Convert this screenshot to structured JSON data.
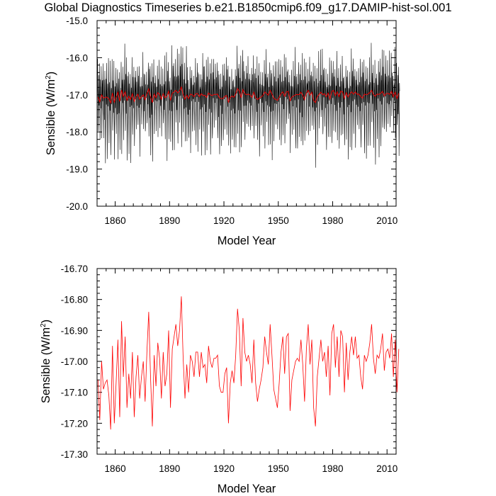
{
  "title": "Global Diagnostics Timeseries b.e21.B1850cmip6.f09_g17.DAMIP-hist-sol.001",
  "colors": {
    "monthly": "#000000",
    "annual": "#ff0000",
    "frame": "#000000"
  },
  "chart_data": [
    {
      "type": "line",
      "xlabel": "Model Year",
      "ylabel_main": "Sensible (W/m",
      "ylabel_sup": "2",
      "ylabel_close": ")",
      "xlim": [
        1850,
        2015
      ],
      "ylim": [
        -20.0,
        -15.0
      ],
      "xticks": [
        1860,
        1890,
        1920,
        1950,
        1980,
        2010
      ],
      "xtick_labels": [
        "1860",
        "1890",
        "1920",
        "1950",
        "1980",
        "2010"
      ],
      "yticks": [
        -15.0,
        -16.0,
        -17.0,
        -18.0,
        -19.0,
        -20.0
      ],
      "ytick_labels": [
        "-15.0",
        "-16.0",
        "-17.0",
        "-18.0",
        "-19.0",
        "-20.0"
      ],
      "grid": false,
      "series": [
        {
          "color": "#000000",
          "resolution": "monthly",
          "approx_range": [
            -19.0,
            -15.6
          ],
          "approx_mean": -17.0,
          "seasonal_high_range": [
            -16.9,
            -15.6
          ],
          "seasonal_low_range": [
            -19.0,
            -17.6
          ]
        },
        {
          "color": "#ff0000",
          "resolution": "annual",
          "values_ref": "annual_means"
        }
      ]
    },
    {
      "type": "line",
      "xlabel": "Model Year",
      "ylabel_main": "Sensible (W/m",
      "ylabel_sup": "2",
      "ylabel_close": ")",
      "xlim": [
        1850,
        2015
      ],
      "ylim": [
        -17.3,
        -16.7
      ],
      "xticks": [
        1860,
        1890,
        1920,
        1950,
        1980,
        2010
      ],
      "xtick_labels": [
        "1860",
        "1890",
        "1920",
        "1950",
        "1980",
        "2010"
      ],
      "yticks": [
        -16.7,
        -16.8,
        -16.9,
        -17.0,
        -17.1,
        -17.2,
        -17.3
      ],
      "ytick_labels": [
        "-16.70",
        "-16.80",
        "-16.90",
        "-17.00",
        "-17.10",
        "-17.20",
        "-17.30"
      ],
      "grid": false,
      "series": [
        {
          "color": "#ff0000",
          "resolution": "annual",
          "start_year": 1850,
          "values": [
            -17.06,
            -17.19,
            -17.0,
            -17.09,
            -17.07,
            -17.06,
            -17.11,
            -17.22,
            -16.95,
            -17.2,
            -17.07,
            -16.93,
            -17.18,
            -16.87,
            -17.05,
            -16.92,
            -17.15,
            -17.04,
            -17.12,
            -16.97,
            -17.18,
            -17.05,
            -16.98,
            -17.12,
            -17.05,
            -17.0,
            -17.13,
            -16.97,
            -16.84,
            -17.05,
            -17.21,
            -16.98,
            -17.08,
            -16.94,
            -16.99,
            -17.12,
            -16.97,
            -17.08,
            -17.04,
            -16.9,
            -17.15,
            -16.96,
            -16.92,
            -16.88,
            -16.95,
            -16.9,
            -16.79,
            -16.99,
            -17.12,
            -17.01,
            -17.1,
            -16.98,
            -17.0,
            -17.05,
            -16.97,
            -16.97,
            -17.05,
            -16.97,
            -17.02,
            -17.01,
            -17.07,
            -16.95,
            -17.0,
            -17.02,
            -16.99,
            -16.99,
            -16.98,
            -17.08,
            -17.1,
            -17.1,
            -17.04,
            -17.02,
            -17.2,
            -17.07,
            -17.03,
            -17.07,
            -16.98,
            -16.83,
            -16.9,
            -17.08,
            -16.86,
            -16.97,
            -17.0,
            -16.98,
            -17.01,
            -17.07,
            -16.93,
            -17.07,
            -17.13,
            -17.09,
            -17.06,
            -17.02,
            -16.92,
            -16.97,
            -17.01,
            -16.88,
            -16.98,
            -17.09,
            -17.12,
            -17.15,
            -17.07,
            -16.97,
            -16.92,
            -17.04,
            -16.92,
            -16.91,
            -17.16,
            -17.06,
            -17.03,
            -17.0,
            -16.99,
            -17.0,
            -16.93,
            -17.01,
            -17.13,
            -16.96,
            -16.88,
            -17.01,
            -16.93,
            -17.15,
            -17.21,
            -17.05,
            -16.99,
            -16.93,
            -17.0,
            -16.97,
            -17.05,
            -16.95,
            -17.11,
            -16.91,
            -16.88,
            -17.02,
            -16.92,
            -17.05,
            -16.9,
            -16.92,
            -17.1,
            -16.94,
            -17.06,
            -16.97,
            -16.92,
            -16.98,
            -16.92,
            -16.99,
            -16.98,
            -17.05,
            -17.09,
            -16.98,
            -17.0,
            -16.98,
            -16.94,
            -16.88,
            -16.99,
            -17.04,
            -16.98,
            -16.99,
            -16.96,
            -16.91,
            -17.03,
            -16.97,
            -16.96,
            -16.99,
            -16.91,
            -17.05,
            -16.93,
            -17.1,
            -16.96
          ]
        }
      ]
    }
  ]
}
